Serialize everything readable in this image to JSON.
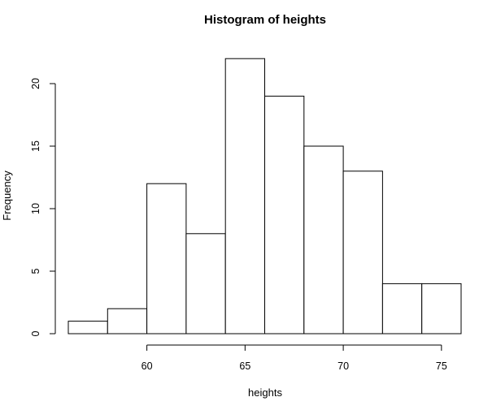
{
  "chart_data": {
    "type": "bar",
    "title": "Histogram of heights",
    "xlabel": "heights",
    "ylabel": "Frequency",
    "bins": [
      {
        "from": 56,
        "to": 58,
        "count": 1
      },
      {
        "from": 58,
        "to": 60,
        "count": 2
      },
      {
        "from": 60,
        "to": 62,
        "count": 12
      },
      {
        "from": 62,
        "to": 64,
        "count": 8
      },
      {
        "from": 64,
        "to": 66,
        "count": 22
      },
      {
        "from": 66,
        "to": 68,
        "count": 19
      },
      {
        "from": 68,
        "to": 70,
        "count": 15
      },
      {
        "from": 70,
        "to": 72,
        "count": 13
      },
      {
        "from": 72,
        "to": 74,
        "count": 4
      },
      {
        "from": 74,
        "to": 76,
        "count": 4
      }
    ],
    "x_ticks": [
      60,
      65,
      70,
      75
    ],
    "y_ticks": [
      0,
      5,
      10,
      15,
      20
    ],
    "xlim": [
      56,
      76
    ],
    "ylim": [
      0,
      22
    ],
    "grid": false,
    "legend": "none"
  }
}
